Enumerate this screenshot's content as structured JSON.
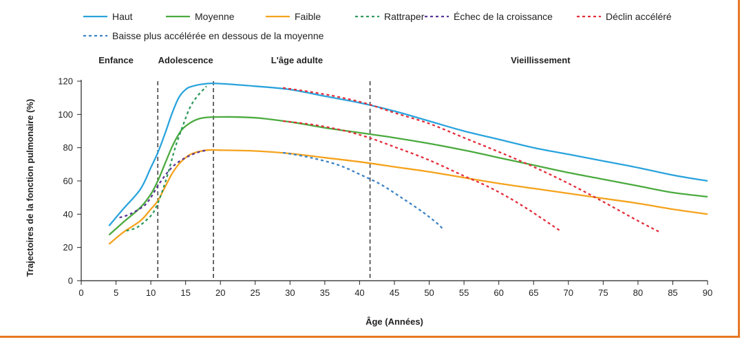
{
  "chart_data": {
    "type": "line",
    "xlabel": "Âge (Années)",
    "ylabel": "Trajectoires de la fonction pulmonaire (%)",
    "xlim": [
      0,
      90
    ],
    "ylim": [
      0,
      120
    ],
    "xticks": [
      0,
      5,
      10,
      15,
      20,
      25,
      30,
      35,
      40,
      45,
      50,
      55,
      60,
      65,
      70,
      75,
      80,
      85,
      90
    ],
    "yticks": [
      0,
      20,
      40,
      60,
      80,
      100,
      120
    ],
    "grid": false,
    "legend_position": "top",
    "phases": [
      {
        "label": "Enfance",
        "x_center": 5
      },
      {
        "label": "Adolescence",
        "x_center": 15
      },
      {
        "label": "L'âge adulte",
        "x_center": 31
      },
      {
        "label": "Vieillissement",
        "x_center": 66
      }
    ],
    "phase_boundaries": [
      11,
      19,
      41.5
    ],
    "series": [
      {
        "name": "Haut",
        "color": "#29a3dc",
        "dashed": false,
        "x": [
          4,
          6,
          8.5,
          10,
          11,
          12,
          13,
          14,
          15,
          16,
          18,
          20,
          25,
          30,
          35,
          40,
          45,
          50,
          55,
          60,
          65,
          70,
          75,
          80,
          85,
          90
        ],
        "y": [
          33,
          43,
          55,
          68,
          77,
          88,
          100,
          110,
          115,
          117,
          118.5,
          118.5,
          117,
          115,
          111,
          107,
          102,
          96,
          90,
          85,
          80,
          76,
          72,
          68,
          63.5,
          60
        ]
      },
      {
        "name": "Moyenne",
        "color": "#4aaa3e",
        "dashed": false,
        "x": [
          4,
          6,
          8.5,
          10,
          11,
          12,
          13,
          14,
          15,
          17,
          20,
          25,
          30,
          35,
          40,
          45,
          50,
          55,
          60,
          65,
          70,
          75,
          80,
          85,
          90
        ],
        "y": [
          27.5,
          35,
          44,
          52,
          60,
          70,
          80,
          88,
          93,
          97.5,
          98.5,
          98,
          95.5,
          92,
          89,
          86,
          82.5,
          78.5,
          74,
          69.5,
          65,
          61,
          57,
          53,
          50.5
        ]
      },
      {
        "name": "Faible",
        "color": "#f5a21b",
        "dashed": false,
        "x": [
          4,
          6,
          8.5,
          10,
          11,
          12,
          13,
          14,
          15,
          16,
          18,
          20,
          25,
          30,
          35,
          40,
          45,
          50,
          55,
          60,
          65,
          70,
          75,
          80,
          85,
          90
        ],
        "y": [
          22,
          29,
          36,
          43,
          48,
          56,
          64,
          70,
          74,
          76.5,
          78.5,
          78.5,
          78,
          76.5,
          74,
          71.5,
          68.5,
          65.5,
          62,
          58.5,
          55.5,
          52.5,
          49.5,
          46.5,
          43,
          40
        ]
      },
      {
        "name": "Rattraper",
        "color": "#2e9a5c",
        "dashed": true,
        "x": [
          6.5,
          8,
          9.5,
          10.5,
          11.5,
          12.5,
          13.5,
          14.5,
          15.5,
          16.5,
          18
        ],
        "y": [
          30,
          32,
          37,
          42,
          52,
          65,
          80,
          92,
          103,
          110,
          117
        ]
      },
      {
        "name": "Échec de la croissance",
        "color": "#5a3595",
        "dashed": true,
        "x": [
          5.5,
          7,
          9,
          10,
          11,
          12,
          13,
          14,
          15,
          16,
          17,
          18
        ],
        "y": [
          38,
          40,
          45,
          50,
          57,
          63,
          68,
          71.5,
          74,
          76,
          77.5,
          78.5
        ]
      },
      {
        "name": "Déclin accéléré",
        "color": "#e32d3a",
        "dashed": true,
        "x": [
          29,
          33,
          37,
          41,
          45,
          50,
          55,
          58,
          61,
          64,
          66,
          69
        ],
        "y": [
          96,
          94,
          91,
          86.5,
          80.5,
          72.5,
          63,
          57.5,
          51,
          43.5,
          38,
          29.5
        ]
      },
      {
        "name": "Déclin accéléré",
        "color": "#e32d3a",
        "dashed": true,
        "x": [
          29,
          33,
          37,
          41,
          45,
          50,
          55,
          60,
          65,
          70,
          75,
          80,
          83
        ],
        "y": [
          116,
          113.5,
          110.5,
          106.5,
          101,
          94.5,
          86,
          77.5,
          68.5,
          58.5,
          47.5,
          36,
          29.5
        ]
      },
      {
        "name": "Baisse plus accélérée en dessous de la moyenne",
        "color": "#3b82c4",
        "dashed": true,
        "x": [
          29,
          33,
          37,
          40,
          43,
          46,
          49,
          51,
          52
        ],
        "y": [
          77,
          74,
          69.5,
          64,
          58,
          50,
          41.5,
          35,
          31
        ]
      }
    ]
  }
}
